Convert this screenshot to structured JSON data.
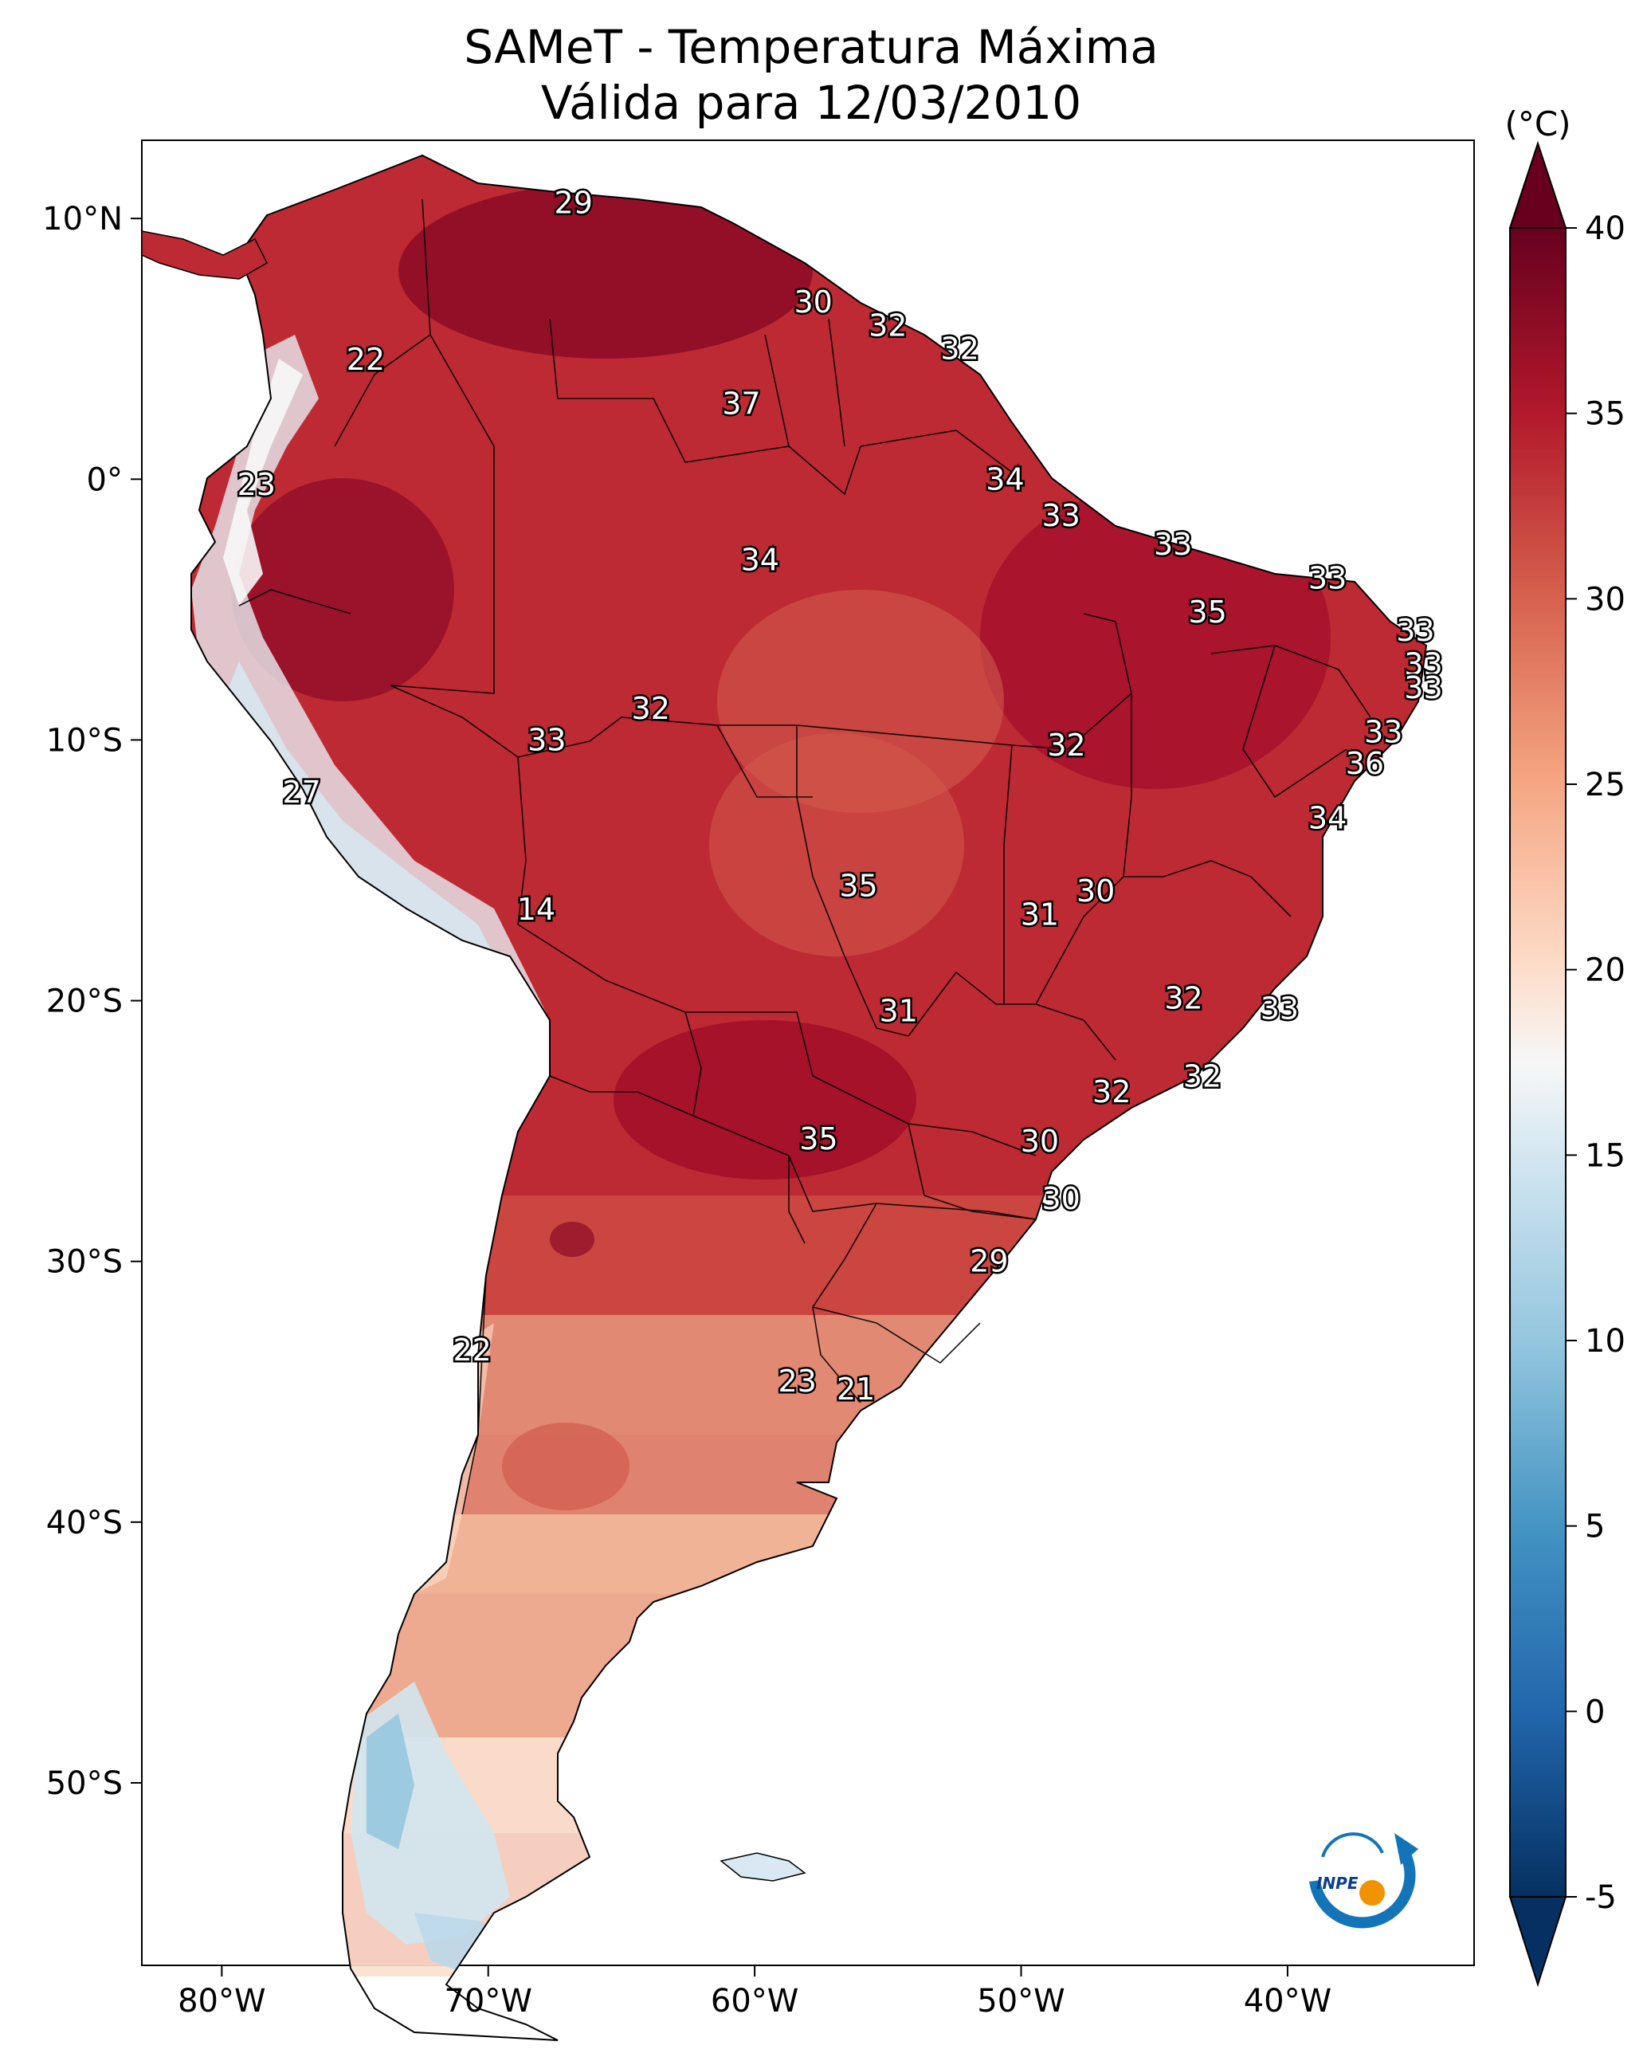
{
  "title": {
    "line1": "SAMeT - Temperatura Máxima",
    "line2": "Válida para 12/03/2010"
  },
  "map": {
    "x_axis": {
      "ticks": [
        -80,
        -70,
        -60,
        -50,
        -40
      ],
      "labels": [
        "80°W",
        "70°W",
        "60°W",
        "50°W",
        "40°W"
      ],
      "range": [
        -83,
        -33
      ]
    },
    "y_axis": {
      "ticks": [
        10,
        0,
        -10,
        -20,
        -30,
        -40,
        -50
      ],
      "labels": [
        "10°N",
        "0°",
        "10°S",
        "20°S",
        "30°S",
        "40°S",
        "50°S"
      ],
      "range": [
        -57,
        13
      ]
    },
    "station_values": [
      {
        "value": "29",
        "lon": -66.8,
        "lat": 10.6
      },
      {
        "value": "30",
        "lon": -57.8,
        "lat": 6.8
      },
      {
        "value": "32",
        "lon": -55.0,
        "lat": 5.9
      },
      {
        "value": "32",
        "lon": -52.3,
        "lat": 5.0
      },
      {
        "value": "22",
        "lon": -74.6,
        "lat": 4.6
      },
      {
        "value": "37",
        "lon": -60.5,
        "lat": 2.9
      },
      {
        "value": "23",
        "lon": -78.7,
        "lat": -0.2
      },
      {
        "value": "34",
        "lon": -50.6,
        "lat": 0.0
      },
      {
        "value": "33",
        "lon": -48.5,
        "lat": -1.4
      },
      {
        "value": "34",
        "lon": -59.8,
        "lat": -3.1
      },
      {
        "value": "33",
        "lon": -44.3,
        "lat": -2.5
      },
      {
        "value": "33",
        "lon": -38.5,
        "lat": -3.8
      },
      {
        "value": "35",
        "lon": -43.0,
        "lat": -5.1
      },
      {
        "value": "33",
        "lon": -35.2,
        "lat": -5.8
      },
      {
        "value": "33",
        "lon": -34.9,
        "lat": -7.1
      },
      {
        "value": "33",
        "lon": -34.9,
        "lat": -8.0
      },
      {
        "value": "32",
        "lon": -63.9,
        "lat": -8.8
      },
      {
        "value": "33",
        "lon": -67.8,
        "lat": -10.0
      },
      {
        "value": "32",
        "lon": -48.3,
        "lat": -10.2
      },
      {
        "value": "33",
        "lon": -36.4,
        "lat": -9.7
      },
      {
        "value": "36",
        "lon": -37.1,
        "lat": -10.9
      },
      {
        "value": "27",
        "lon": -77.0,
        "lat": -12.0
      },
      {
        "value": "34",
        "lon": -38.5,
        "lat": -13.0
      },
      {
        "value": "30",
        "lon": -47.2,
        "lat": -15.8
      },
      {
        "value": "35",
        "lon": -56.1,
        "lat": -15.6
      },
      {
        "value": "14",
        "lon": -68.2,
        "lat": -16.5
      },
      {
        "value": "31",
        "lon": -49.3,
        "lat": -16.7
      },
      {
        "value": "32",
        "lon": -43.9,
        "lat": -19.9
      },
      {
        "value": "33",
        "lon": -40.3,
        "lat": -20.3
      },
      {
        "value": "31",
        "lon": -54.6,
        "lat": -20.4
      },
      {
        "value": "32",
        "lon": -43.2,
        "lat": -22.9
      },
      {
        "value": "32",
        "lon": -46.6,
        "lat": -23.5
      },
      {
        "value": "35",
        "lon": -57.6,
        "lat": -25.3
      },
      {
        "value": "30",
        "lon": -49.3,
        "lat": -25.4
      },
      {
        "value": "30",
        "lon": -48.5,
        "lat": -27.6
      },
      {
        "value": "29",
        "lon": -51.2,
        "lat": -30.0
      },
      {
        "value": "22",
        "lon": -70.6,
        "lat": -33.4
      },
      {
        "value": "23",
        "lon": -58.4,
        "lat": -34.6
      },
      {
        "value": "21",
        "lon": -56.2,
        "lat": -34.9
      }
    ],
    "logo": {
      "text": "INPE"
    }
  },
  "colorbar": {
    "unit": "(°C)",
    "range": [
      -5,
      40
    ],
    "extend": "both",
    "ticks": [
      40,
      35,
      30,
      25,
      20,
      15,
      10,
      5,
      0,
      -5
    ],
    "tick_labels": [
      "40",
      "35",
      "30",
      "25",
      "20",
      "15",
      "10",
      "5",
      "0",
      "-5"
    ],
    "colormap": "RdBu_r"
  },
  "colors": {
    "hot": "#67001f",
    "warm": "#d6604d",
    "neutral": "#f7f7f7",
    "cool": "#4393c3",
    "cold": "#053061",
    "border": "#000000"
  }
}
